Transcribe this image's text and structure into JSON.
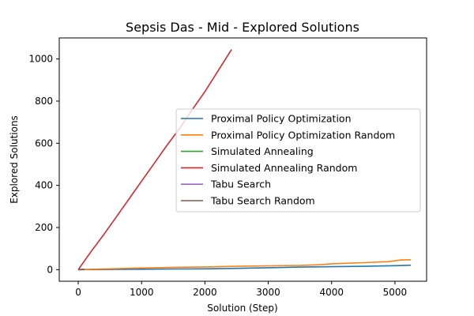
{
  "chart_data": {
    "type": "line",
    "title": "Sepsis Das - Mid - Explored Solutions",
    "xlabel": "Solution (Step)",
    "ylabel": "Explored Solutions",
    "xlim": [
      -300,
      5500
    ],
    "ylim": [
      -55,
      1100
    ],
    "xticks": [
      0,
      1000,
      2000,
      3000,
      4000,
      5000
    ],
    "yticks": [
      0,
      200,
      400,
      600,
      800,
      1000
    ],
    "grid": false,
    "legend_position": "center-right",
    "series": [
      {
        "name": "Proximal Policy Optimization",
        "color": "#1f77b4",
        "x": [
          0,
          500,
          1000,
          1500,
          2000,
          2500,
          3000,
          3500,
          4000,
          4500,
          5000,
          5250
        ],
        "y": [
          0,
          1,
          2,
          3,
          4,
          6,
          9,
          12,
          14,
          16,
          19,
          21
        ]
      },
      {
        "name": "Proximal Policy Optimization Random",
        "color": "#ff7f0e",
        "x": [
          0,
          500,
          1000,
          1500,
          2000,
          2500,
          3000,
          3500,
          3800,
          4000,
          4500,
          4900,
          5100,
          5250
        ],
        "y": [
          0,
          4,
          8,
          11,
          13,
          16,
          18,
          20,
          23,
          28,
          33,
          38,
          46,
          47
        ]
      },
      {
        "name": "Simulated Annealing",
        "color": "#2ca02c",
        "x": [
          0,
          100
        ],
        "y": [
          0,
          1
        ]
      },
      {
        "name": "Simulated Annealing Random",
        "color": "#d62728",
        "x": [
          0,
          200,
          400,
          600,
          800,
          1000,
          1200,
          1400,
          1600,
          1800,
          2000,
          2200,
          2420
        ],
        "y": [
          0,
          85,
          165,
          250,
          335,
          420,
          505,
          590,
          670,
          760,
          845,
          940,
          1045
        ]
      },
      {
        "name": "Tabu Search",
        "color": "#9467bd",
        "x": [
          0,
          100
        ],
        "y": [
          0,
          1
        ]
      },
      {
        "name": "Tabu Search Random",
        "color": "#8c564b",
        "x": [
          0,
          100
        ],
        "y": [
          0,
          1
        ]
      }
    ]
  }
}
